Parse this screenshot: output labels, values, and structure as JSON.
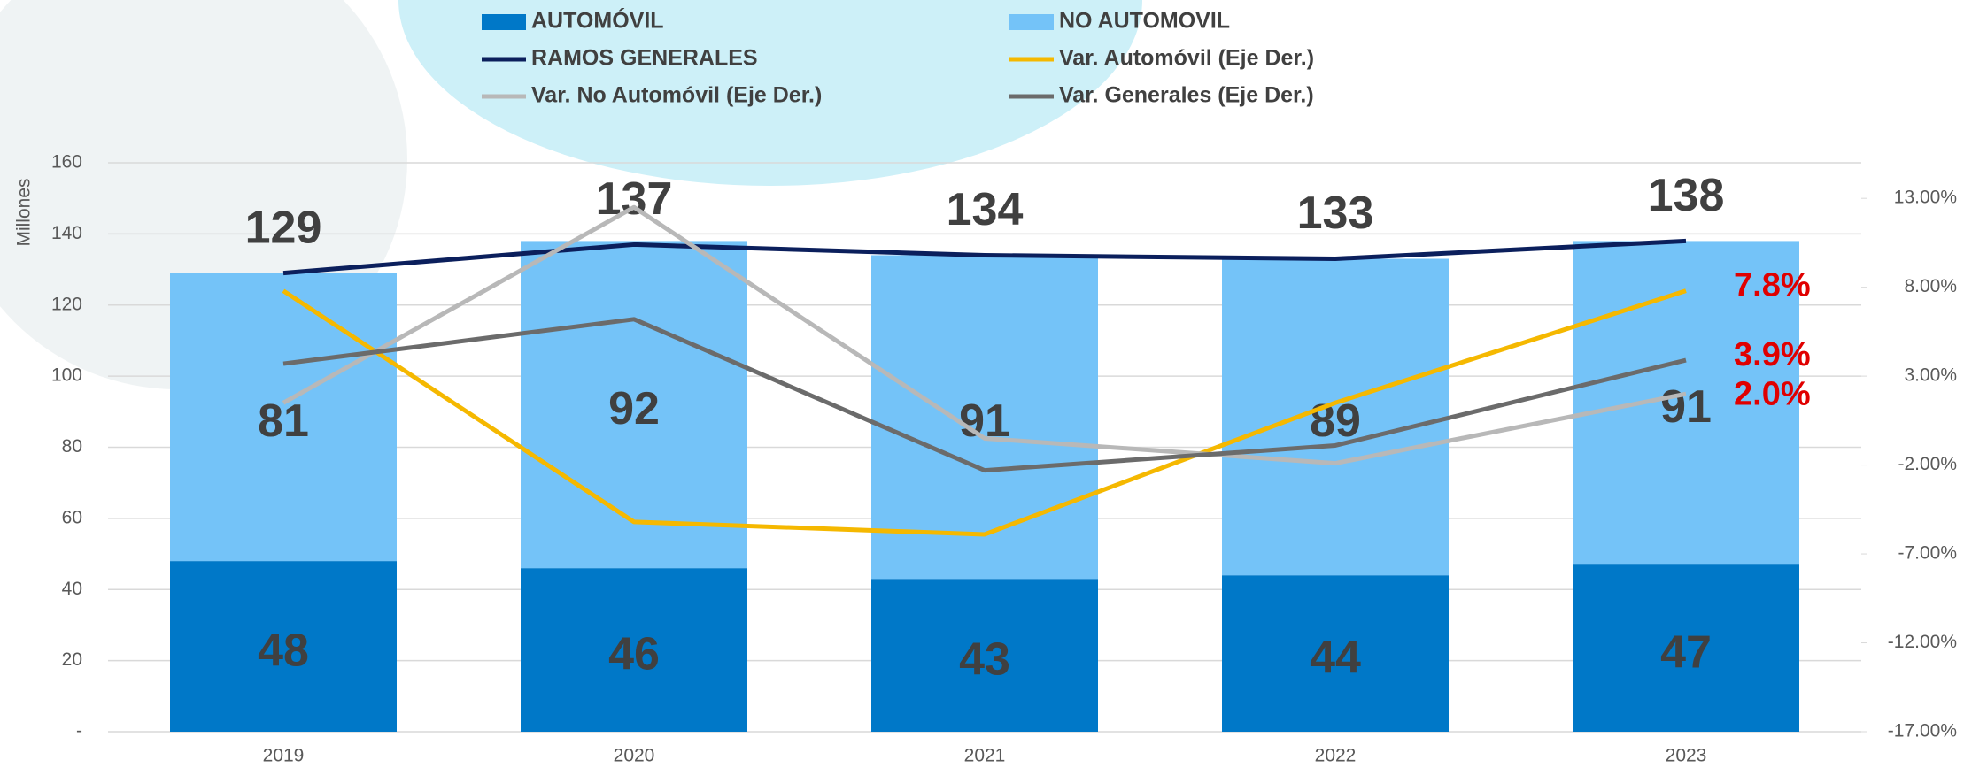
{
  "chart_data": {
    "type": "bar",
    "stacked": true,
    "ylabel": "Millones",
    "categories": [
      "2019",
      "2020",
      "2021",
      "2022",
      "2023"
    ],
    "series": [
      {
        "name": "AUTOMÓVIL",
        "type": "bar",
        "color": "#0078c8",
        "values": [
          48,
          46,
          43,
          44,
          47
        ]
      },
      {
        "name": "NO AUTOMOVIL",
        "type": "bar",
        "color": "#74c3f8",
        "values": [
          81,
          92,
          91,
          89,
          91
        ]
      },
      {
        "name": "RAMOS GENERALES",
        "type": "line",
        "color": "#0b1f5c",
        "values": [
          129,
          137,
          134,
          133,
          138
        ]
      },
      {
        "name": "Var. Automóvil (Eje Der.)",
        "type": "line",
        "axis": "y2",
        "color": "#f5b800",
        "values": [
          7.8,
          -5.2,
          -5.9,
          1.5,
          7.8
        ],
        "value_labels": [
          null,
          null,
          null,
          null,
          "7.8%"
        ]
      },
      {
        "name": "Var. No Automóvil (Eje Der.)",
        "type": "line",
        "axis": "y2",
        "color": "#b8b8b8",
        "values": [
          1.5,
          12.5,
          -0.5,
          -1.9,
          2.0
        ],
        "value_labels": [
          null,
          null,
          null,
          null,
          "2.0%"
        ]
      },
      {
        "name": "Var. Generales (Eje Der.)",
        "type": "line",
        "axis": "y2",
        "color": "#6b6b6b",
        "values": [
          3.7,
          6.2,
          -2.3,
          -0.9,
          3.9
        ],
        "value_labels": [
          null,
          null,
          null,
          null,
          "3.9%"
        ]
      }
    ],
    "ylim": [
      0,
      160
    ],
    "yticks": [
      {
        "value": 0,
        "label": "-"
      },
      20,
      40,
      60,
      80,
      100,
      120,
      140,
      160
    ],
    "y2lim": [
      -17,
      15
    ],
    "y2ticks": [
      {
        "value": -17,
        "label": "-17.00%"
      },
      {
        "value": -12,
        "label": "-12.00%"
      },
      {
        "value": -7,
        "label": "-7.00%"
      },
      {
        "value": -2,
        "label": "-2.00%"
      },
      {
        "value": 3,
        "label": "3.00%"
      },
      {
        "value": 8,
        "label": "8.00%"
      },
      {
        "value": 13,
        "label": "13.00%"
      }
    ],
    "grid": true
  }
}
